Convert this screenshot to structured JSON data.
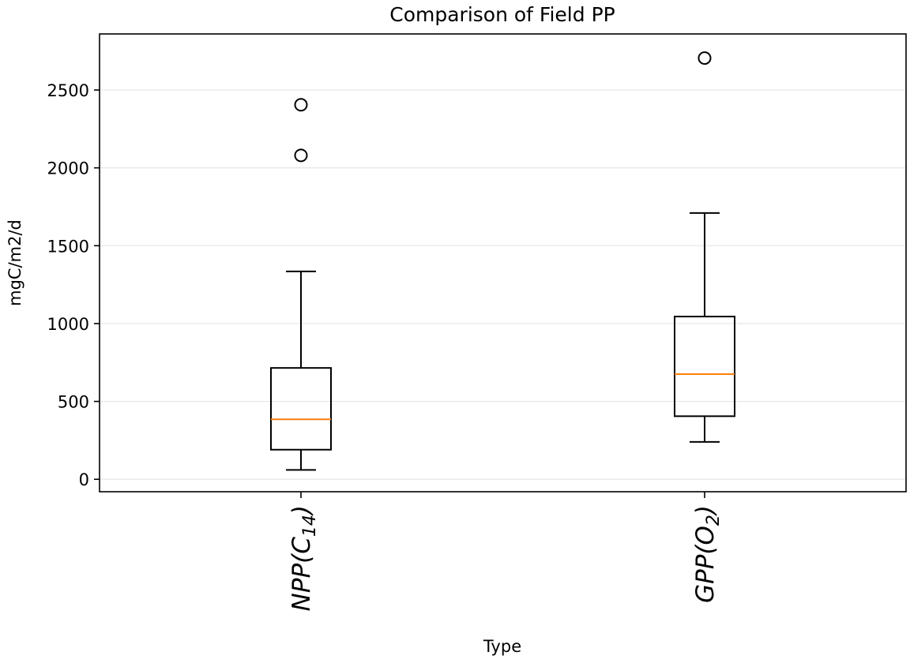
{
  "chart_data": {
    "type": "boxplot",
    "title": "Comparison of Field PP",
    "xlabel": "Type",
    "ylabel": "mgC/m2/d",
    "ylim": [
      -80,
      2860
    ],
    "yticks": [
      0,
      500,
      1000,
      1500,
      2000,
      2500
    ],
    "grid": "horizontal",
    "categories": [
      {
        "main": "NPP(C",
        "sub": "14",
        "close": ")"
      },
      {
        "main": "GPP(O",
        "sub": "2",
        "close": ")"
      }
    ],
    "boxes": [
      {
        "name": "NPP(C14)",
        "whisker_low": 60,
        "q1": 190,
        "median": 385,
        "q3": 715,
        "whisker_high": 1335,
        "outliers": [
          2080,
          2405
        ]
      },
      {
        "name": "GPP(O2)",
        "whisker_low": 240,
        "q1": 405,
        "median": 675,
        "q3": 1045,
        "whisker_high": 1710,
        "outliers": [
          2705
        ]
      }
    ],
    "colors": {
      "median": "#ff7f0e",
      "box": "#000000",
      "grid": "#e6e6e6"
    }
  }
}
